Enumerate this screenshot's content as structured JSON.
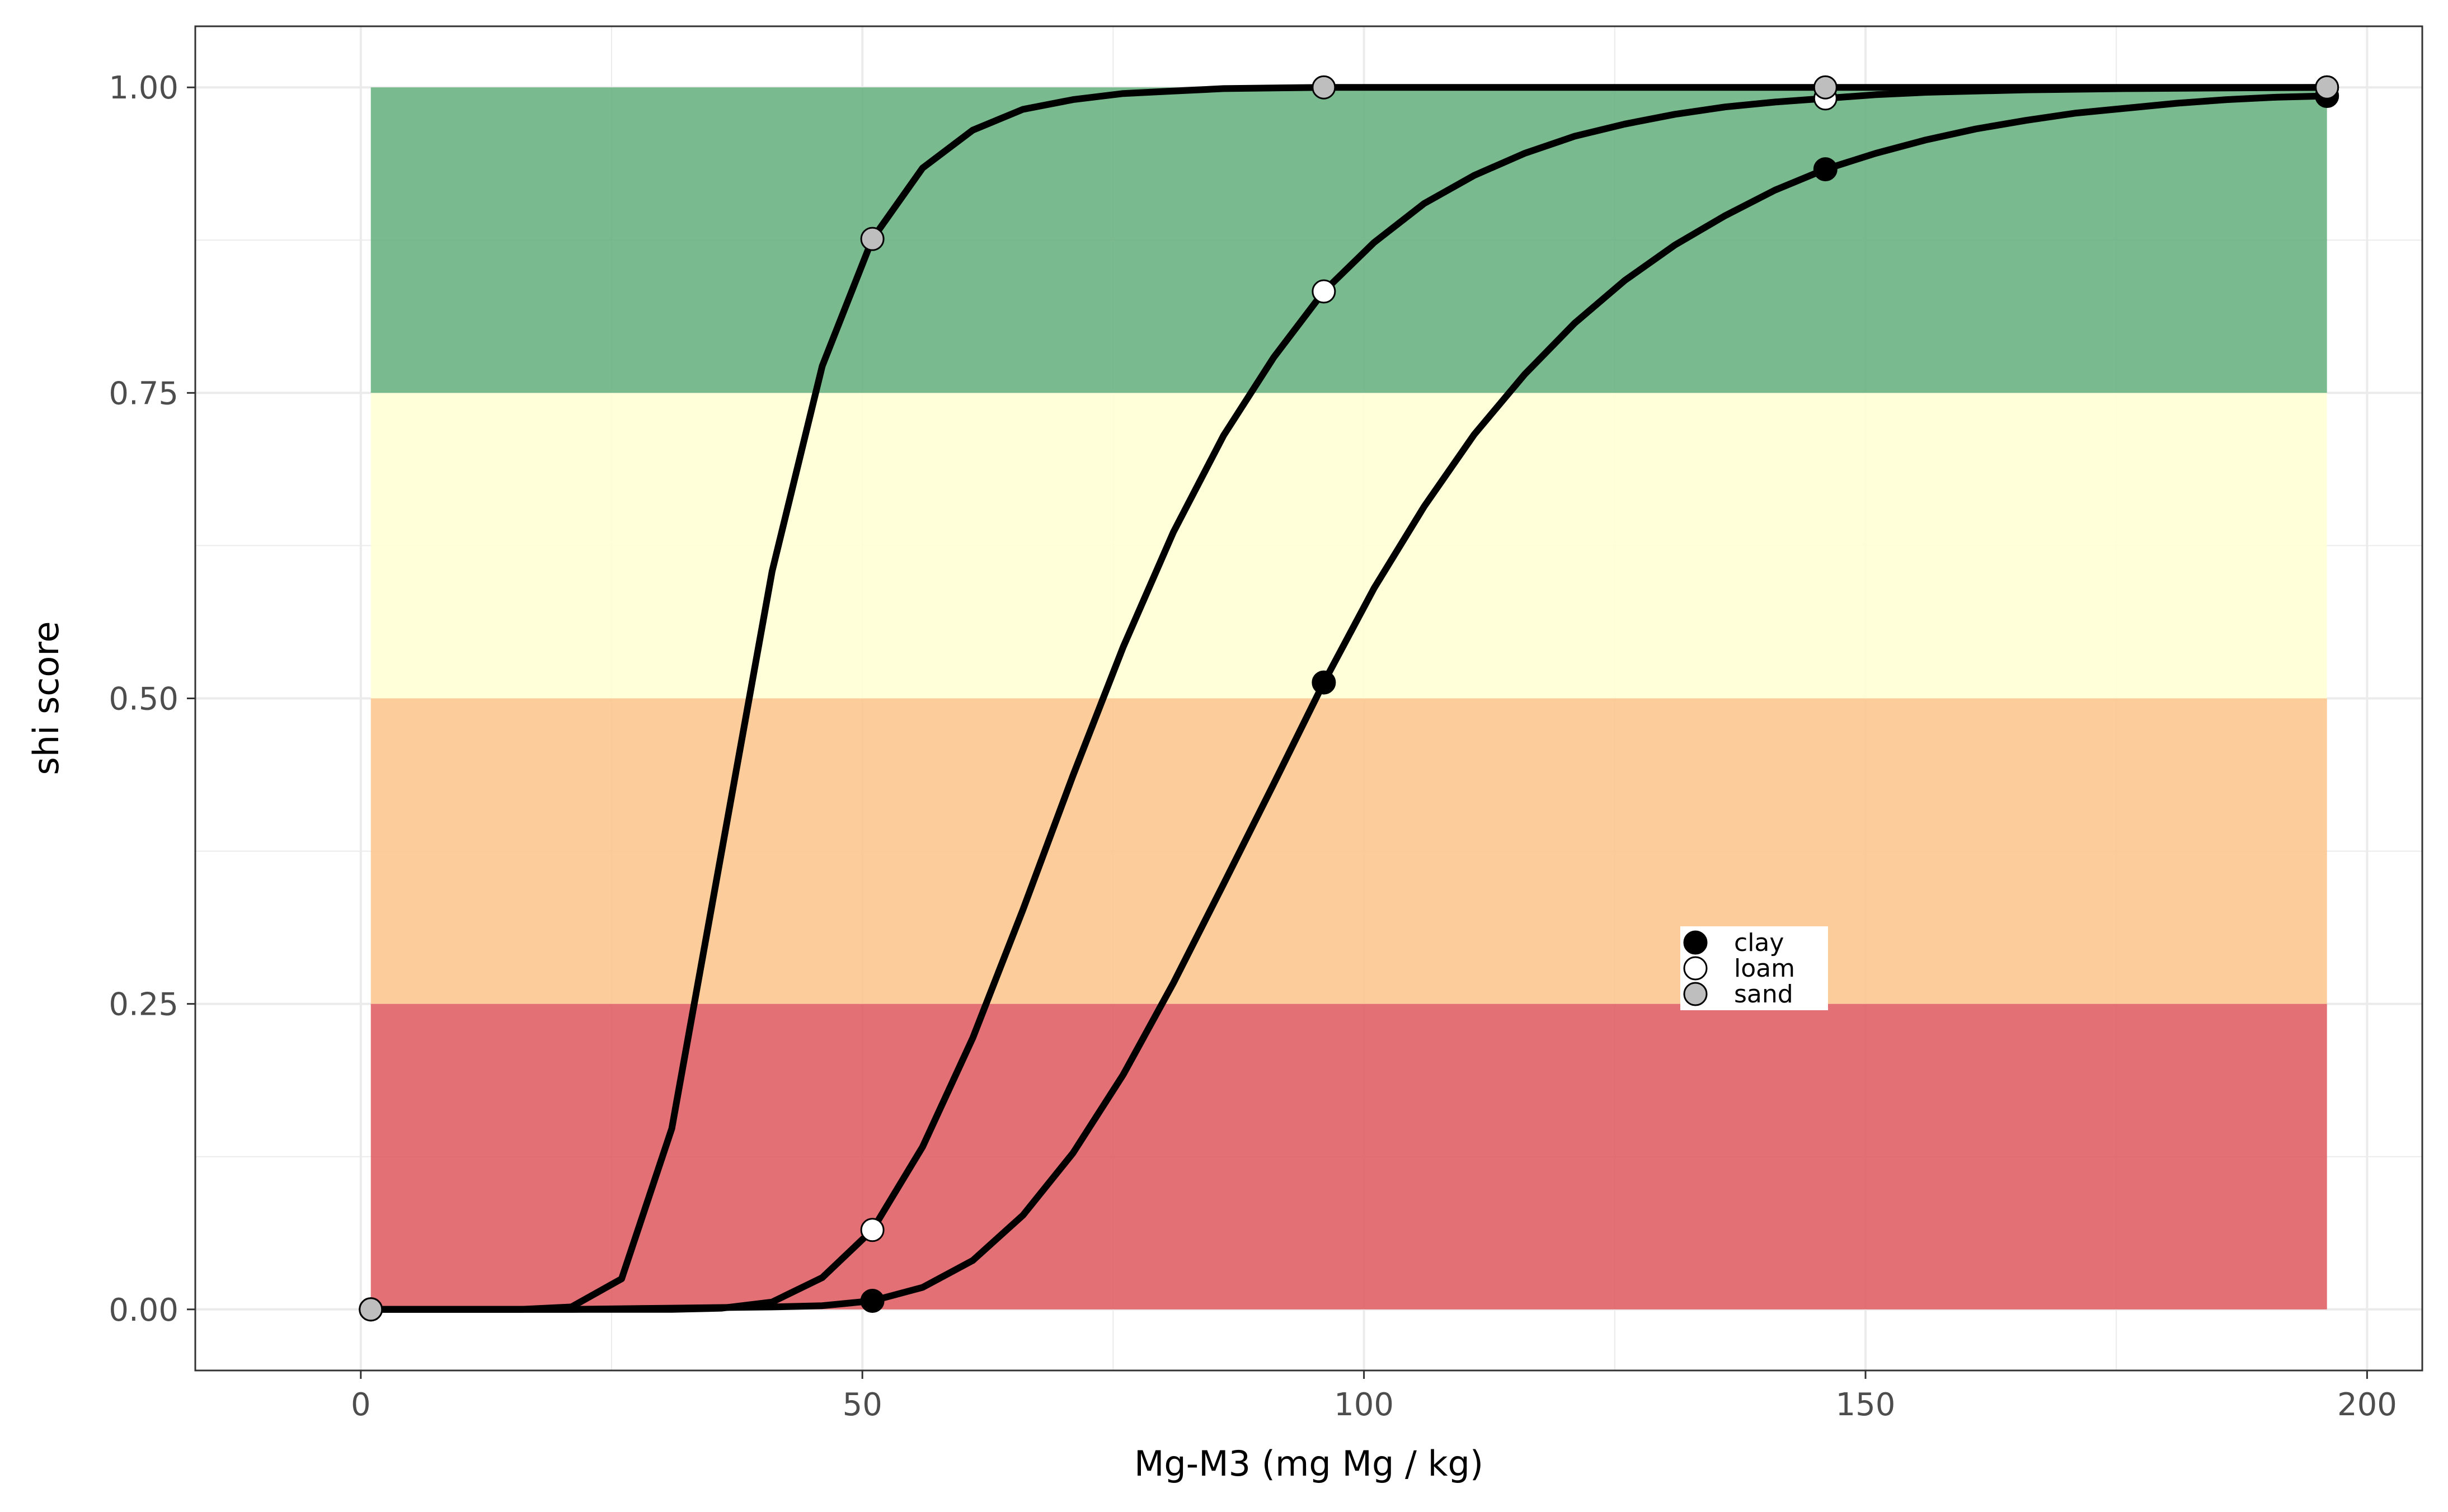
{
  "chart_data": {
    "type": "line",
    "title": "",
    "xlabel": "Mg-M3 (mg Mg / kg)",
    "ylabel": "shi score",
    "xlim": [
      -16.5,
      205.5
    ],
    "ylim": [
      -0.05,
      1.05
    ],
    "x_ticks": [
      0,
      50,
      100,
      150,
      200
    ],
    "x_tick_labels": [
      "0",
      "50",
      "100",
      "150",
      "200"
    ],
    "y_ticks": [
      0,
      0.25,
      0.5,
      0.75,
      1
    ],
    "y_tick_labels": [
      "0.00",
      "0.25",
      "0.50",
      "0.75",
      "1.00"
    ],
    "grid": true,
    "legend_position": "inside, center-right",
    "bands": [
      {
        "y0": 0.0,
        "y1": 0.25,
        "x0": 1,
        "x1": 196,
        "color": "#e06066"
      },
      {
        "y0": 0.25,
        "y1": 0.5,
        "x0": 1,
        "x1": 196,
        "color": "#fcc690"
      },
      {
        "y0": 0.5,
        "y1": 0.75,
        "x0": 1,
        "x1": 196,
        "color": "#ffffd6"
      },
      {
        "y0": 0.75,
        "y1": 1.0,
        "x0": 1,
        "x1": 196,
        "color": "#6cb383"
      }
    ],
    "series": [
      {
        "name": "clay",
        "point_color": "#000000",
        "line": [
          [
            1,
            0
          ],
          [
            21,
            0
          ],
          [
            31,
            0.001
          ],
          [
            41,
            0.002
          ],
          [
            46,
            0.003
          ],
          [
            51,
            0.007
          ],
          [
            56,
            0.018
          ],
          [
            61,
            0.04
          ],
          [
            66,
            0.077
          ],
          [
            71,
            0.128
          ],
          [
            76,
            0.192
          ],
          [
            81,
            0.267
          ],
          [
            86,
            0.348
          ],
          [
            91,
            0.43
          ],
          [
            96,
            0.513
          ],
          [
            101,
            0.59
          ],
          [
            106,
            0.657
          ],
          [
            111,
            0.716
          ],
          [
            116,
            0.765
          ],
          [
            121,
            0.807
          ],
          [
            126,
            0.842
          ],
          [
            131,
            0.871
          ],
          [
            136,
            0.895
          ],
          [
            141,
            0.916
          ],
          [
            146,
            0.933
          ],
          [
            151,
            0.946
          ],
          [
            156,
            0.957
          ],
          [
            161,
            0.966
          ],
          [
            166,
            0.973
          ],
          [
            171,
            0.979
          ],
          [
            176,
            0.983
          ],
          [
            181,
            0.987
          ],
          [
            186,
            0.99
          ],
          [
            191,
            0.992
          ],
          [
            196,
            0.993
          ]
        ],
        "points": [
          [
            1,
            0
          ],
          [
            51,
            0.007
          ],
          [
            96,
            0.513
          ],
          [
            146,
            0.933
          ],
          [
            196,
            0.993
          ]
        ]
      },
      {
        "name": "loam",
        "point_color": "#ffffff",
        "line": [
          [
            1,
            0
          ],
          [
            21,
            0
          ],
          [
            31,
            0
          ],
          [
            36,
            0.001
          ],
          [
            41,
            0.006
          ],
          [
            46,
            0.026
          ],
          [
            51,
            0.065
          ],
          [
            56,
            0.133
          ],
          [
            61,
            0.222
          ],
          [
            66,
            0.327
          ],
          [
            71,
            0.437
          ],
          [
            76,
            0.542
          ],
          [
            81,
            0.636
          ],
          [
            86,
            0.715
          ],
          [
            91,
            0.779
          ],
          [
            96,
            0.833
          ],
          [
            101,
            0.873
          ],
          [
            106,
            0.905
          ],
          [
            111,
            0.928
          ],
          [
            116,
            0.946
          ],
          [
            121,
            0.96
          ],
          [
            126,
            0.97
          ],
          [
            131,
            0.978
          ],
          [
            136,
            0.984
          ],
          [
            141,
            0.988
          ],
          [
            146,
            0.991
          ],
          [
            151,
            0.994
          ],
          [
            156,
            0.996
          ],
          [
            166,
            0.998
          ],
          [
            176,
            0.999
          ],
          [
            196,
            1.0
          ]
        ],
        "points": [
          [
            1,
            0
          ],
          [
            51,
            0.065
          ],
          [
            96,
            0.833
          ],
          [
            146,
            0.991
          ],
          [
            196,
            1.0
          ]
        ]
      },
      {
        "name": "sand",
        "point_color": "#bebebe",
        "line": [
          [
            1,
            0
          ],
          [
            16,
            0
          ],
          [
            21,
            0.002
          ],
          [
            26,
            0.025
          ],
          [
            31,
            0.148
          ],
          [
            36,
            0.376
          ],
          [
            41,
            0.604
          ],
          [
            46,
            0.772
          ],
          [
            51,
            0.876
          ],
          [
            56,
            0.934
          ],
          [
            61,
            0.965
          ],
          [
            66,
            0.982
          ],
          [
            71,
            0.99
          ],
          [
            76,
            0.995
          ],
          [
            81,
            0.997
          ],
          [
            86,
            0.999
          ],
          [
            96,
            1.0
          ],
          [
            146,
            1.0
          ],
          [
            196,
            1.0
          ]
        ],
        "points": [
          [
            1,
            0
          ],
          [
            51,
            0.876
          ],
          [
            96,
            1.0
          ],
          [
            146,
            1.0
          ],
          [
            196,
            1.0
          ]
        ]
      }
    ]
  }
}
